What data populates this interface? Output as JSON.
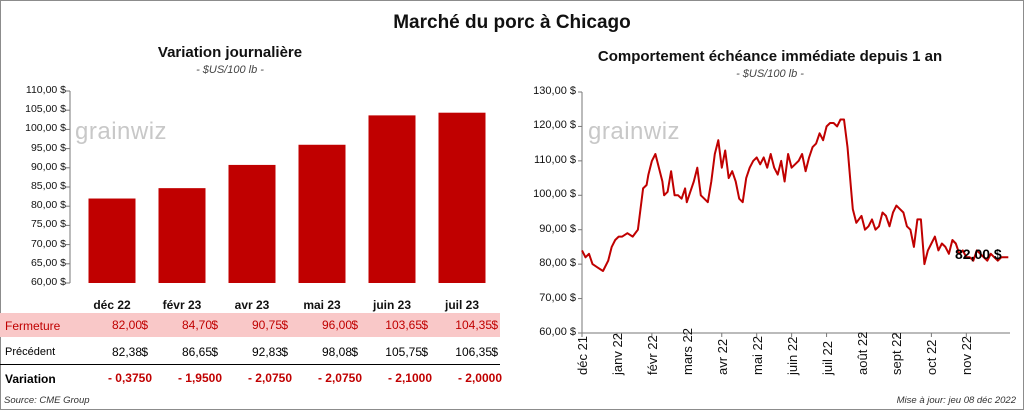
{
  "title": "Marché du porc à Chicago",
  "left": {
    "title": "Variation journalière",
    "subtitle": "- $US/100 lb -",
    "watermark": "grainwiz",
    "row_labels": {
      "close": "Fermeture",
      "previous": "Précédent",
      "change": "Variation"
    },
    "close_unit": "$",
    "prev_unit": "$",
    "previous": [
      "82,38",
      "86,65",
      "92,83",
      "98,08",
      "105,75",
      "106,35"
    ],
    "close_text": [
      "82,00",
      "84,70",
      "90,75",
      "96,00",
      "103,65",
      "104,35"
    ],
    "change": [
      "- 0,3750",
      "- 1,9500",
      "- 2,0750",
      "- 2,0750",
      "- 2,1000",
      "- 2,0000"
    ]
  },
  "right": {
    "title": "Comportement  échéance immédiate depuis 1 an",
    "subtitle": "- $US/100 lb -",
    "watermark": "grainwiz",
    "last_label": "82,00 $"
  },
  "footer": {
    "source": "Source: CME Group",
    "updated": "Mise à jour: jeu 08 déc 2022"
  },
  "colors": {
    "bar": "#c00000",
    "line": "#c00000",
    "highlight_row": "#f9c8c8",
    "negative": "#c00000"
  },
  "chart_data": [
    {
      "type": "bar",
      "title": "Variation journalière",
      "categories": [
        "déc 22",
        "févr 23",
        "avr 23",
        "mai 23",
        "juin 23",
        "juil 23"
      ],
      "values": [
        82.0,
        84.7,
        90.75,
        96.0,
        103.65,
        104.35
      ],
      "ylim": [
        60,
        110
      ],
      "yticks": [
        "110,00 $",
        "105,00 $",
        "100,00 $",
        "95,00 $",
        "90,00 $",
        "85,00 $",
        "80,00 $",
        "75,00 $",
        "70,00 $",
        "65,00 $",
        "60,00 $"
      ],
      "grid": false
    },
    {
      "type": "line",
      "title": "Comportement  échéance immédiate depuis 1 an",
      "ylim": [
        60,
        130
      ],
      "yticks": [
        "130,00 $",
        "120,00 $",
        "110,00 $",
        "100,00 $",
        "90,00 $",
        "80,00 $",
        "70,00 $",
        "60,00 $"
      ],
      "month_labels": [
        "déc 21",
        "janv 22",
        "févr 22",
        "mars 22",
        "avr 22",
        "mai 22",
        "juin 22",
        "juil 22",
        "août 22",
        "sept 22",
        "oct 22",
        "nov 22"
      ],
      "x_range": [
        0,
        12.25
      ],
      "series": [
        {
          "x": [
            0,
            0.1,
            0.2,
            0.3,
            0.45,
            0.6,
            0.75,
            0.85,
            0.95,
            1.05,
            1.15,
            1.3,
            1.45,
            1.6,
            1.75,
            1.85,
            1.9,
            2.0,
            2.1,
            2.2,
            2.3,
            2.35,
            2.45,
            2.55,
            2.65,
            2.75,
            2.85,
            2.95,
            3.0,
            3.1,
            3.2,
            3.3,
            3.4,
            3.5,
            3.6,
            3.7,
            3.8,
            3.9,
            4.0,
            4.1,
            4.2,
            4.3,
            4.4,
            4.5,
            4.6,
            4.7,
            4.8,
            4.9,
            5.0,
            5.1,
            5.2,
            5.3,
            5.4,
            5.5,
            5.6,
            5.7,
            5.8,
            5.9,
            6.0,
            6.1,
            6.2,
            6.3,
            6.4,
            6.5,
            6.6,
            6.7,
            6.8,
            6.9,
            7.0,
            7.1,
            7.2,
            7.3,
            7.4,
            7.5,
            7.6,
            7.7,
            7.75,
            7.85,
            8.0,
            8.1,
            8.2,
            8.3,
            8.4,
            8.5,
            8.6,
            8.7,
            8.8,
            8.9,
            9.0,
            9.1,
            9.2,
            9.3,
            9.4,
            9.5,
            9.6,
            9.7,
            9.8,
            9.9,
            10.0,
            10.1,
            10.2,
            10.3,
            10.4,
            10.5,
            10.6,
            10.7,
            10.8,
            10.9,
            11.0,
            11.1,
            11.2,
            11.3,
            11.4,
            11.5,
            11.6,
            11.7,
            11.8,
            11.9,
            12.0,
            12.1,
            12.2
          ],
          "values": [
            84,
            82,
            83,
            80,
            79,
            78,
            81,
            85,
            87,
            88,
            88,
            89,
            88,
            90,
            102,
            103,
            106,
            110,
            112,
            108,
            104,
            100,
            101,
            107,
            100,
            100,
            99,
            102,
            98,
            101,
            104,
            108,
            100,
            99,
            98,
            104,
            112,
            116,
            108,
            113,
            105,
            107,
            104,
            99,
            98,
            105,
            108,
            110,
            111,
            109,
            111,
            108,
            112,
            108,
            106,
            110,
            104,
            112,
            108,
            109,
            110,
            112,
            107,
            111,
            114,
            115,
            118,
            116,
            120,
            121,
            121,
            120,
            122,
            122,
            114,
            102,
            96,
            92,
            94,
            90,
            91,
            93,
            90,
            91,
            95,
            94,
            91,
            95,
            97,
            96,
            95,
            91,
            90,
            85,
            93,
            93,
            80,
            84,
            86,
            88,
            84,
            86,
            85,
            83,
            87,
            86,
            83,
            84,
            82,
            82,
            81,
            84,
            83,
            82,
            81,
            83,
            82,
            81,
            82,
            82,
            82
          ],
          "color": "#c00000"
        }
      ],
      "annotation": "82,00 $",
      "grid": false
    }
  ]
}
